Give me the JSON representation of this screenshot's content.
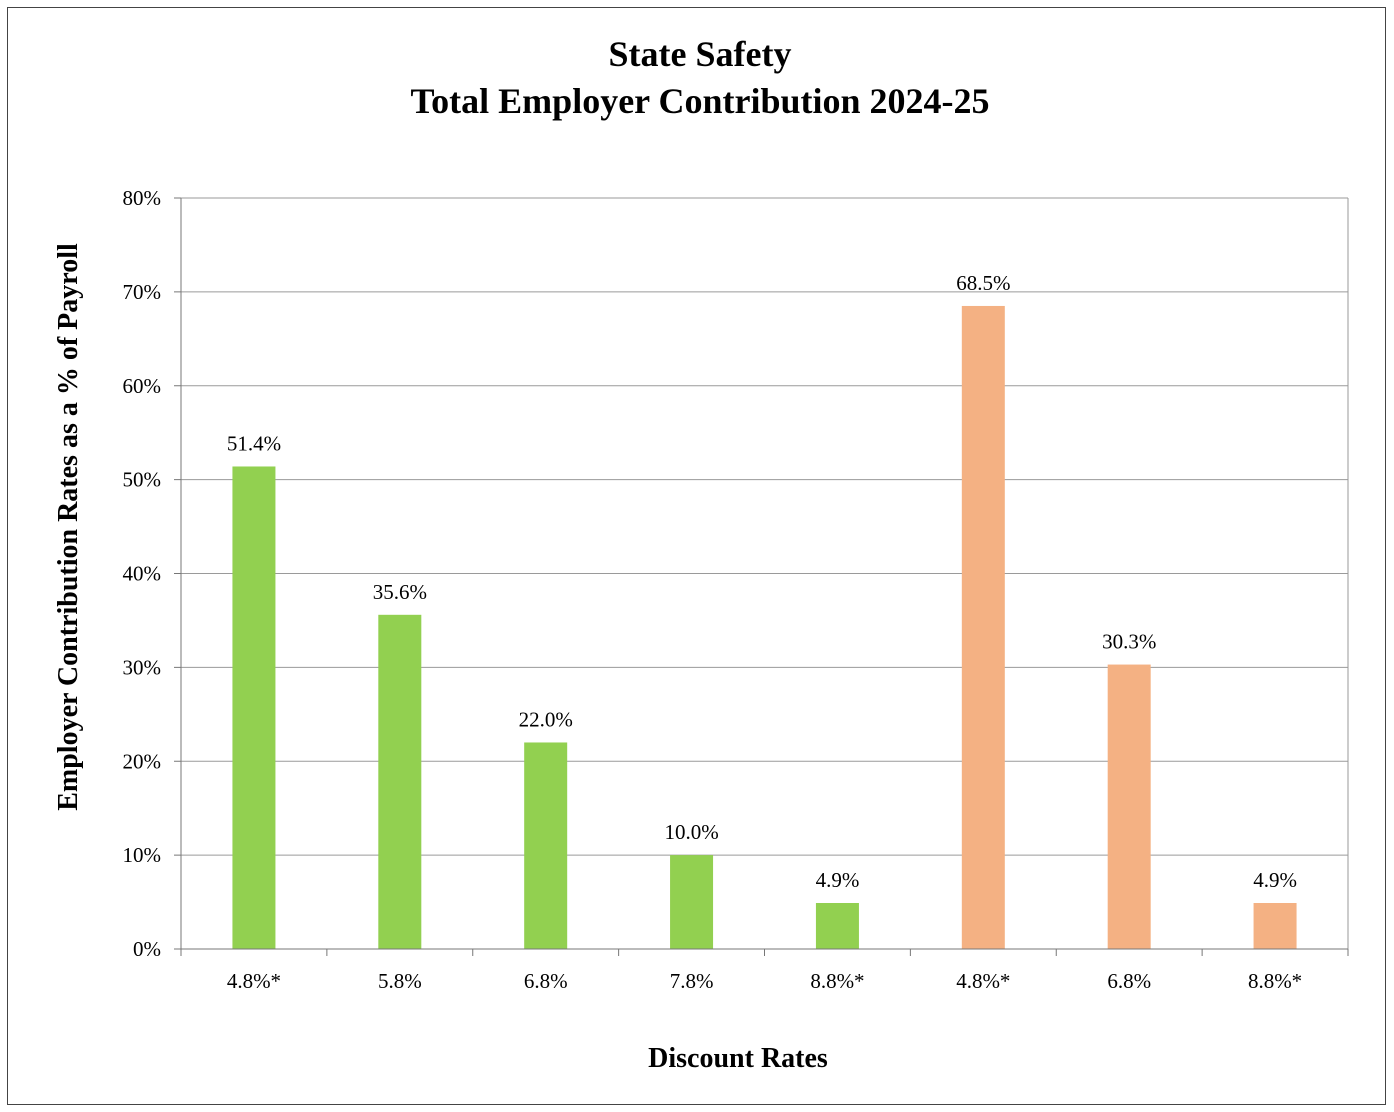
{
  "chart_data": {
    "type": "bar",
    "title_lines": [
      "State Safety",
      "Total Employer Contribution 2024-25"
    ],
    "xlabel": "Discount Rates",
    "ylabel": "Employer Contribution Rates as a % of Payroll",
    "ylim": [
      0,
      80
    ],
    "y_ticks": [
      0,
      10,
      20,
      30,
      40,
      50,
      60,
      70,
      80
    ],
    "y_tick_labels": [
      "0%",
      "10%",
      "20%",
      "30%",
      "40%",
      "50%",
      "60%",
      "70%",
      "80%"
    ],
    "grid": true,
    "legend": "none",
    "categories": [
      "4.8%*",
      "5.8%",
      "6.8%",
      "7.8%",
      "8.8%*",
      "4.8%*",
      "6.8%",
      "8.8%*"
    ],
    "values": [
      51.4,
      35.6,
      22.0,
      10.0,
      4.9,
      68.5,
      30.3,
      4.9
    ],
    "data_labels": [
      "51.4%",
      "35.6%",
      "22.0%",
      "10.0%",
      "4.9%",
      "68.5%",
      "30.3%",
      "4.9%"
    ],
    "bar_colors": [
      "#92d050",
      "#92d050",
      "#92d050",
      "#92d050",
      "#92d050",
      "#f4b183",
      "#f4b183",
      "#f4b183"
    ]
  }
}
